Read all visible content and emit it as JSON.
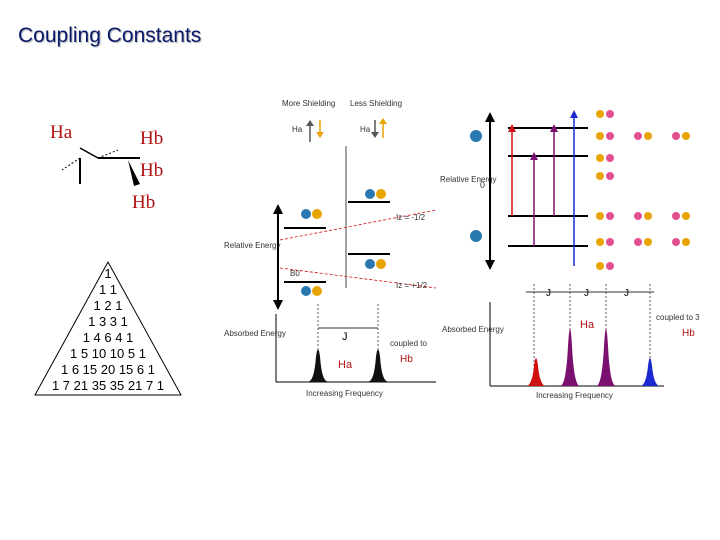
{
  "title": "Coupling Constants",
  "newman": {
    "ha": "Ha",
    "hb1": "Hb",
    "hb2": "Hb",
    "hb3": "Hb"
  },
  "pascal": [
    "1",
    "1 1",
    "1 2 1",
    "1 3 3 1",
    "1 4 6 4 1",
    "1 5 10 10 5 1",
    "1 6 15 20 15 6 1",
    "1 7 21 35 35 21 7 1"
  ],
  "middle": {
    "more_shielding": "More Shielding",
    "less_shielding": "Less Shielding",
    "relative_energy": "Relative Energy",
    "absorbed_energy": "Absorbed Energy",
    "iz_neg": "Iz = -1/2",
    "iz_pos": "Iz = +1/2",
    "j_label": "J",
    "coupled_to": "coupled to",
    "ha": "Ha",
    "hb": "Hb",
    "x_axis": "Increasing Frequency",
    "b0": "B0"
  },
  "right": {
    "relative_energy": "Relative Energy",
    "zero": "0",
    "absorbed_energy": "Absorbed Energy",
    "ha": "Ha",
    "coupled_to": "coupled to 3",
    "hb": "Hb",
    "j_label": "J",
    "x_axis": "Increasing Frequency"
  },
  "colors": {
    "title": "#0a1a6a",
    "label_red": "#b31010",
    "orange": "#e8a400",
    "peak_red": "#d11010",
    "peak_purple": "#7a1070",
    "peak_blue": "#1a2ad0"
  }
}
